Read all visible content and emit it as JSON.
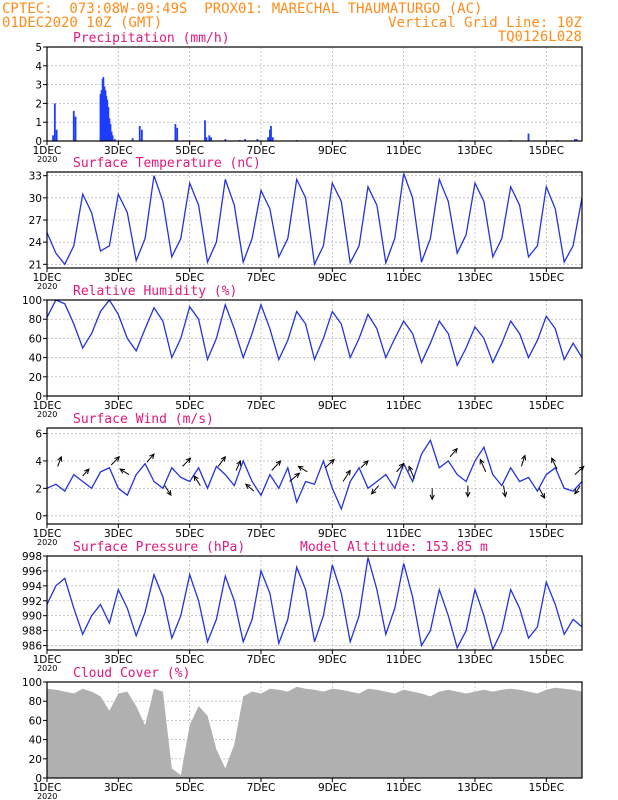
{
  "header": {
    "line1_left": "CPTEC:  073:08W-09:49S  PROX01: MARECHAL THAUMATURGO (AC)",
    "line2_left": "01DEC2020 10Z (GMT)",
    "line2_right": "Vertical Grid Line: 10Z",
    "line3_right": "TQ0126L028"
  },
  "colors": {
    "header": "#ff8c1a",
    "title": "#e0197d",
    "line": "#2233dd",
    "bar": "#1d3cff",
    "cloud": "#b0b0b0",
    "arrow": "#000000",
    "grid": "#aaaaaa"
  },
  "x_axis": {
    "range_days": [
      0,
      15
    ],
    "tick_days": [
      0,
      2,
      4,
      6,
      8,
      10,
      12,
      14
    ],
    "tick_labels": [
      "1DEC",
      "3DEC",
      "5DEC",
      "7DEC",
      "9DEC",
      "11DEC",
      "13DEC",
      "15DEC"
    ],
    "year_label": "2020"
  },
  "chart_data": [
    {
      "id": "precip",
      "type": "bar",
      "title": "Precipitation (mm/h)",
      "ylim": [
        0,
        5
      ],
      "yticks": [
        0,
        1,
        2,
        3,
        4,
        5
      ],
      "grid": true,
      "bars": [
        [
          0.17,
          0.3
        ],
        [
          0.22,
          2.0
        ],
        [
          0.27,
          0.6
        ],
        [
          0.75,
          1.6
        ],
        [
          0.8,
          1.3
        ],
        [
          1.5,
          2.5
        ],
        [
          1.53,
          2.7
        ],
        [
          1.56,
          3.3
        ],
        [
          1.58,
          3.4
        ],
        [
          1.61,
          2.9
        ],
        [
          1.64,
          2.7
        ],
        [
          1.66,
          2.4
        ],
        [
          1.69,
          2.2
        ],
        [
          1.72,
          1.8
        ],
        [
          1.75,
          1.2
        ],
        [
          1.78,
          0.9
        ],
        [
          1.81,
          0.5
        ],
        [
          1.84,
          0.3
        ],
        [
          1.9,
          0.1
        ],
        [
          2.4,
          0.15
        ],
        [
          2.6,
          0.8
        ],
        [
          2.66,
          0.6
        ],
        [
          3.6,
          0.9
        ],
        [
          3.65,
          0.7
        ],
        [
          4.43,
          1.1
        ],
        [
          4.47,
          0.2
        ],
        [
          4.55,
          0.3
        ],
        [
          4.6,
          0.2
        ],
        [
          5.0,
          0.1
        ],
        [
          5.4,
          0.05
        ],
        [
          5.55,
          0.1
        ],
        [
          5.9,
          0.1
        ],
        [
          6.2,
          0.2
        ],
        [
          6.25,
          0.6
        ],
        [
          6.28,
          0.8
        ],
        [
          6.33,
          0.2
        ],
        [
          7.0,
          0.05
        ],
        [
          8.4,
          0.05
        ],
        [
          10.1,
          0.05
        ],
        [
          11.6,
          0.05
        ],
        [
          13.0,
          0.05
        ],
        [
          13.5,
          0.4
        ],
        [
          14.3,
          0.05
        ],
        [
          14.8,
          0.1
        ],
        [
          14.85,
          0.1
        ]
      ]
    },
    {
      "id": "temp",
      "type": "line",
      "title": "Surface Temperature (nC)",
      "ylim": [
        20.5,
        33.5
      ],
      "yticks": [
        21,
        24,
        27,
        30,
        33
      ],
      "grid": true,
      "x": [
        0,
        0.25,
        0.5,
        0.75,
        1,
        1.25,
        1.5,
        1.75,
        2,
        2.25,
        2.5,
        2.75,
        3,
        3.25,
        3.5,
        3.75,
        4,
        4.25,
        4.5,
        4.75,
        5,
        5.25,
        5.5,
        5.75,
        6,
        6.25,
        6.5,
        6.75,
        7,
        7.25,
        7.5,
        7.75,
        8,
        8.25,
        8.5,
        8.75,
        9,
        9.25,
        9.5,
        9.75,
        10,
        10.25,
        10.5,
        10.75,
        11,
        11.25,
        11.5,
        11.75,
        12,
        12.25,
        12.5,
        12.75,
        13,
        13.25,
        13.5,
        13.75,
        14,
        14.25,
        14.5,
        14.75,
        15
      ],
      "values": [
        25.3,
        22.5,
        21.0,
        23.5,
        30.5,
        28.0,
        22.8,
        23.5,
        30.5,
        28.0,
        21.5,
        24.5,
        33.0,
        29.5,
        22.0,
        24.5,
        32.0,
        29.0,
        21.3,
        24.0,
        32.5,
        29.0,
        21.3,
        24.5,
        31.0,
        28.5,
        22.0,
        24.5,
        32.5,
        30.0,
        21.0,
        23.5,
        32.0,
        29.5,
        21.2,
        23.5,
        31.5,
        29.0,
        21.2,
        24.5,
        33.3,
        30.0,
        21.3,
        24.5,
        32.5,
        29.5,
        22.5,
        25.0,
        32.0,
        29.5,
        22.0,
        24.5,
        31.5,
        29.0,
        22.0,
        23.5,
        31.5,
        28.5,
        21.3,
        23.5,
        30.0
      ]
    },
    {
      "id": "rh",
      "type": "line",
      "title": "Relative Humidity (%)",
      "ylim": [
        0,
        100
      ],
      "yticks": [
        0,
        20,
        40,
        60,
        80,
        100
      ],
      "grid": true,
      "x": [
        0,
        0.25,
        0.5,
        0.75,
        1,
        1.25,
        1.5,
        1.75,
        2,
        2.25,
        2.5,
        2.75,
        3,
        3.25,
        3.5,
        3.75,
        4,
        4.25,
        4.5,
        4.75,
        5,
        5.25,
        5.5,
        5.75,
        6,
        6.25,
        6.5,
        6.75,
        7,
        7.25,
        7.5,
        7.75,
        8,
        8.25,
        8.5,
        8.75,
        9,
        9.25,
        9.5,
        9.75,
        10,
        10.25,
        10.5,
        10.75,
        11,
        11.25,
        11.5,
        11.75,
        12,
        12.25,
        12.5,
        12.75,
        13,
        13.25,
        13.5,
        13.75,
        14,
        14.25,
        14.5,
        14.75,
        15
      ],
      "values": [
        82,
        100,
        96,
        75,
        50,
        65,
        88,
        100,
        85,
        60,
        47,
        70,
        92,
        78,
        40,
        60,
        93,
        80,
        38,
        60,
        95,
        70,
        40,
        65,
        95,
        70,
        38,
        58,
        88,
        75,
        38,
        60,
        88,
        75,
        40,
        60,
        85,
        70,
        40,
        60,
        78,
        65,
        35,
        55,
        78,
        65,
        32,
        50,
        72,
        60,
        35,
        55,
        78,
        65,
        40,
        58,
        83,
        70,
        38,
        55,
        40
      ]
    },
    {
      "id": "wind",
      "type": "line",
      "title": "Surface Wind (m/s)",
      "ylim": [
        -0.6,
        6.4
      ],
      "yticks": [
        0,
        2,
        4,
        6
      ],
      "grid": true,
      "x": [
        0,
        0.25,
        0.5,
        0.75,
        1,
        1.25,
        1.5,
        1.75,
        2,
        2.25,
        2.5,
        2.75,
        3,
        3.25,
        3.5,
        3.75,
        4,
        4.25,
        4.5,
        4.75,
        5,
        5.25,
        5.5,
        5.75,
        6,
        6.25,
        6.5,
        6.75,
        7,
        7.25,
        7.5,
        7.75,
        8,
        8.25,
        8.5,
        8.75,
        9,
        9.25,
        9.5,
        9.75,
        10,
        10.25,
        10.5,
        10.75,
        11,
        11.25,
        11.5,
        11.75,
        12,
        12.25,
        12.5,
        12.75,
        13,
        13.25,
        13.5,
        13.75,
        14,
        14.25,
        14.5,
        14.75,
        15
      ],
      "values": [
        2.0,
        2.3,
        1.8,
        3.0,
        2.5,
        2.0,
        3.2,
        3.5,
        2.0,
        1.5,
        3.0,
        3.8,
        2.5,
        2.0,
        3.5,
        2.8,
        2.5,
        3.5,
        2.0,
        3.6,
        3.0,
        2.2,
        4.0,
        2.5,
        1.5,
        3.0,
        2.0,
        3.5,
        1.0,
        2.5,
        2.3,
        4.0,
        2.0,
        0.5,
        2.5,
        3.5,
        2.0,
        2.5,
        3.0,
        2.0,
        3.8,
        2.5,
        4.5,
        5.5,
        3.5,
        4.0,
        3.0,
        2.5,
        4.0,
        5.0,
        3.0,
        2.2,
        3.5,
        2.5,
        2.8,
        1.8,
        3.0,
        3.5,
        2.0,
        1.8,
        2.5
      ],
      "arrows": [
        [
          0.3,
          3.6,
          0.2,
          0.7
        ],
        [
          1.0,
          2.9,
          0.35,
          0.5
        ],
        [
          1.8,
          3.7,
          0.45,
          0.6
        ],
        [
          2.3,
          3.0,
          -0.5,
          0.4
        ],
        [
          2.8,
          3.9,
          0.4,
          0.6
        ],
        [
          3.3,
          2.2,
          0.35,
          -0.7
        ],
        [
          3.8,
          3.6,
          0.45,
          0.6
        ],
        [
          4.3,
          2.2,
          -0.35,
          0.7
        ],
        [
          4.8,
          3.6,
          0.4,
          0.7
        ],
        [
          5.3,
          3.3,
          0.25,
          0.7
        ],
        [
          5.8,
          1.8,
          -0.45,
          0.5
        ],
        [
          6.3,
          3.3,
          0.5,
          0.7
        ],
        [
          6.8,
          2.5,
          0.55,
          0.6
        ],
        [
          7.3,
          3.2,
          -0.5,
          0.4
        ],
        [
          7.8,
          3.5,
          0.5,
          0.6
        ],
        [
          8.3,
          2.5,
          0.4,
          0.8
        ],
        [
          8.8,
          3.5,
          0.4,
          0.5
        ],
        [
          9.3,
          2.2,
          -0.4,
          -0.6
        ],
        [
          9.8,
          3.2,
          0.4,
          0.6
        ],
        [
          10.3,
          2.7,
          -0.3,
          0.9
        ],
        [
          10.8,
          2.0,
          0.0,
          -0.8
        ],
        [
          11.3,
          4.3,
          0.4,
          0.6
        ],
        [
          11.8,
          2.2,
          0.0,
          -0.8
        ],
        [
          12.3,
          3.2,
          -0.3,
          0.9
        ],
        [
          12.8,
          2.2,
          0.1,
          -0.8
        ],
        [
          13.3,
          3.6,
          0.2,
          0.8
        ],
        [
          13.8,
          2.0,
          0.3,
          -0.7
        ],
        [
          14.3,
          3.4,
          -0.3,
          0.8
        ],
        [
          14.8,
          3.0,
          0.5,
          0.6
        ],
        [
          14.95,
          2.2,
          -0.3,
          -0.6
        ]
      ]
    },
    {
      "id": "pressure",
      "type": "line",
      "title": "Surface Pressure (hPa)",
      "extra_label": "Model Altitude: 153.85 m",
      "ylim": [
        985.4,
        998
      ],
      "yticks": [
        986,
        988,
        990,
        992,
        994,
        996,
        998
      ],
      "grid": true,
      "x": [
        0,
        0.25,
        0.5,
        0.75,
        1,
        1.25,
        1.5,
        1.75,
        2,
        2.25,
        2.5,
        2.75,
        3,
        3.25,
        3.5,
        3.75,
        4,
        4.25,
        4.5,
        4.75,
        5,
        5.25,
        5.5,
        5.75,
        6,
        6.25,
        6.5,
        6.75,
        7,
        7.25,
        7.5,
        7.75,
        8,
        8.25,
        8.5,
        8.75,
        9,
        9.25,
        9.5,
        9.75,
        10,
        10.25,
        10.5,
        10.75,
        11,
        11.25,
        11.5,
        11.75,
        12,
        12.25,
        12.5,
        12.75,
        13,
        13.25,
        13.5,
        13.75,
        14,
        14.25,
        14.5,
        14.75,
        15
      ],
      "values": [
        991.5,
        994.0,
        995.0,
        991.0,
        987.5,
        990.0,
        991.5,
        989.0,
        993.5,
        991.0,
        987.3,
        990.5,
        995.5,
        992.5,
        987.0,
        990.0,
        995.5,
        992.0,
        986.5,
        989.5,
        995.3,
        992.0,
        986.5,
        989.5,
        996.0,
        993.0,
        986.3,
        989.5,
        996.5,
        993.5,
        986.5,
        990.0,
        996.8,
        993.0,
        986.5,
        990.0,
        997.8,
        993.5,
        987.5,
        991.0,
        997.0,
        992.5,
        986.0,
        988.0,
        993.5,
        990.0,
        985.7,
        988.0,
        993.5,
        990.0,
        985.5,
        988.0,
        993.5,
        991.0,
        987.0,
        988.5,
        994.5,
        991.5,
        987.5,
        989.5,
        988.5
      ]
    },
    {
      "id": "cloud",
      "type": "area",
      "title": "Cloud Cover (%)",
      "ylim": [
        0,
        100
      ],
      "yticks": [
        0,
        20,
        40,
        60,
        80,
        100
      ],
      "grid": true,
      "x": [
        0,
        0.25,
        0.5,
        0.75,
        1,
        1.25,
        1.5,
        1.75,
        2,
        2.25,
        2.5,
        2.75,
        3,
        3.25,
        3.5,
        3.75,
        4,
        4.25,
        4.5,
        4.75,
        5,
        5.25,
        5.5,
        5.75,
        6,
        6.25,
        6.5,
        6.75,
        7,
        7.25,
        7.5,
        7.75,
        8,
        8.25,
        8.5,
        8.75,
        9,
        9.25,
        9.5,
        9.75,
        10,
        10.25,
        10.5,
        10.75,
        11,
        11.25,
        11.5,
        11.75,
        12,
        12.25,
        12.5,
        12.75,
        13,
        13.25,
        13.5,
        13.75,
        14,
        14.25,
        14.5,
        14.75,
        15
      ],
      "values": [
        93,
        92,
        90,
        88,
        93,
        90,
        85,
        70,
        88,
        90,
        75,
        55,
        93,
        90,
        10,
        3,
        55,
        75,
        65,
        30,
        10,
        35,
        85,
        90,
        88,
        93,
        92,
        90,
        95,
        93,
        92,
        90,
        93,
        92,
        90,
        88,
        93,
        92,
        90,
        88,
        92,
        90,
        88,
        85,
        90,
        92,
        90,
        88,
        90,
        92,
        90,
        92,
        93,
        92,
        90,
        88,
        92,
        94,
        93,
        92,
        90
      ]
    }
  ]
}
